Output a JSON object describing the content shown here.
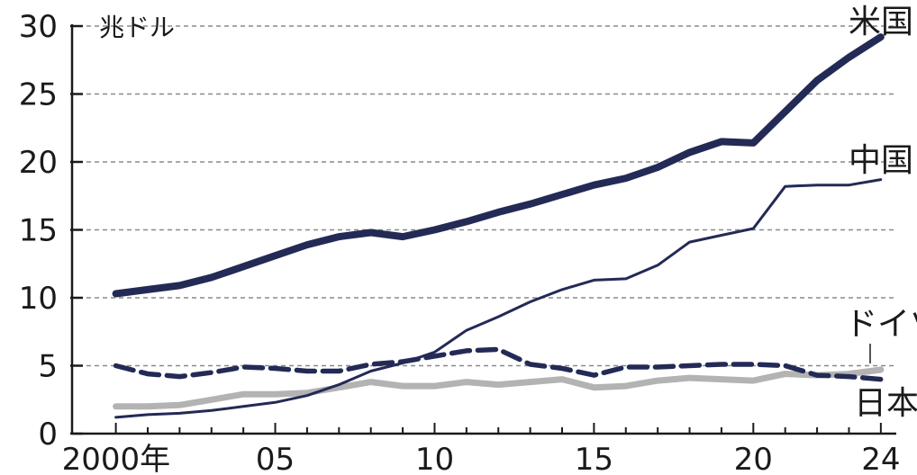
{
  "chart_data": {
    "type": "line",
    "unit_label": "兆ドル",
    "x_tick_labels": [
      {
        "x": 2000,
        "label": "2000年"
      },
      {
        "x": 2005,
        "label": "05"
      },
      {
        "x": 2010,
        "label": "10"
      },
      {
        "x": 2015,
        "label": "15"
      },
      {
        "x": 2020,
        "label": "20"
      },
      {
        "x": 2024,
        "label": "24"
      }
    ],
    "y_ticks": [
      0,
      5,
      10,
      15,
      20,
      25,
      30
    ],
    "xlim": [
      1999.7,
      2024.4
    ],
    "ylim": [
      0,
      30
    ],
    "grid": true,
    "x": [
      2000,
      2001,
      2002,
      2003,
      2004,
      2005,
      2006,
      2007,
      2008,
      2009,
      2010,
      2011,
      2012,
      2013,
      2014,
      2015,
      2016,
      2017,
      2018,
      2019,
      2020,
      2021,
      2022,
      2023,
      2024
    ],
    "series": [
      {
        "name": "米国",
        "color": "#232a55",
        "style": "solid-thick",
        "values": [
          10.3,
          10.6,
          10.9,
          11.5,
          12.3,
          13.1,
          13.9,
          14.5,
          14.8,
          14.5,
          15.0,
          15.6,
          16.3,
          16.9,
          17.6,
          18.3,
          18.8,
          19.6,
          20.7,
          21.5,
          21.4,
          23.7,
          26.0,
          27.7,
          29.2
        ]
      },
      {
        "name": "中国",
        "color": "#232a55",
        "style": "solid-thin",
        "values": [
          1.2,
          1.4,
          1.5,
          1.7,
          2.0,
          2.3,
          2.8,
          3.6,
          4.6,
          5.2,
          6.0,
          7.6,
          8.6,
          9.7,
          10.6,
          11.3,
          11.4,
          12.4,
          14.1,
          14.6,
          15.1,
          18.2,
          18.3,
          18.3,
          18.7
        ]
      },
      {
        "name": "ドイツ",
        "color": "#232a55",
        "style": "dashed",
        "values": [
          5.0,
          4.4,
          4.2,
          4.5,
          4.9,
          4.8,
          4.6,
          4.6,
          5.1,
          5.3,
          5.7,
          6.1,
          6.2,
          5.1,
          4.8,
          4.3,
          4.9,
          4.9,
          5.0,
          5.1,
          5.1,
          5.0,
          4.3,
          4.2,
          4.0
        ]
      },
      {
        "name": "日本",
        "color": "#b3b3b3",
        "style": "solid-gray",
        "values": [
          2.0,
          2.0,
          2.1,
          2.5,
          2.9,
          2.9,
          3.0,
          3.4,
          3.8,
          3.5,
          3.5,
          3.8,
          3.6,
          3.8,
          4.0,
          3.4,
          3.5,
          3.9,
          4.1,
          4.0,
          3.9,
          4.4,
          4.3,
          4.4,
          4.7
        ]
      }
    ]
  }
}
